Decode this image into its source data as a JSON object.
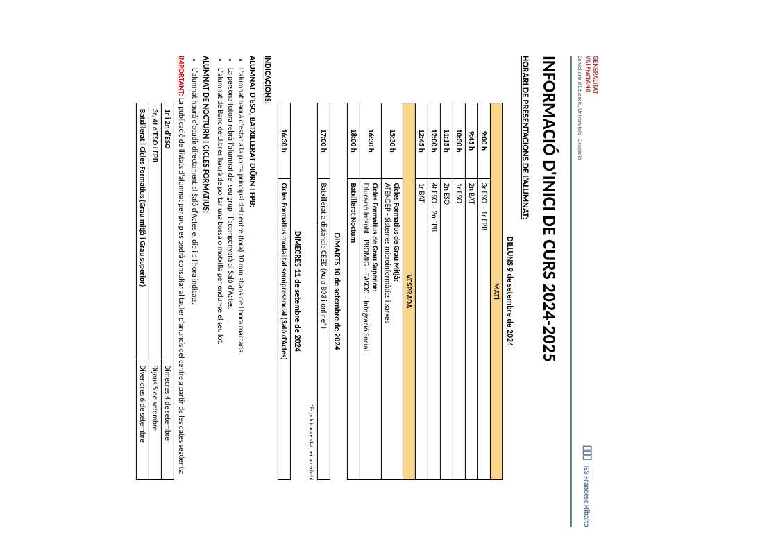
{
  "header": {
    "left_line1": "GENERALITAT",
    "left_line2": "VALENCIANA",
    "left_sub": "Conselleria d'Educació, Universitats i Ocupació",
    "right": "IES Francesc Ribalta"
  },
  "title": "INFORMACIÓ D'INICI DE CURS 2024-2025",
  "subtitle": "HORARI DE PRESENTACIONS DE L'ALUMNAT:",
  "day1": {
    "date": "DILLUNS 9 de setembre de 2024",
    "mati_label": "MATÍ",
    "vesprada_label": "VESPRADA",
    "mati": [
      {
        "time": "9:00 h",
        "label": "3r ESO – 1r FPB"
      },
      {
        "time": "9:45 h",
        "label": "2n BAT"
      },
      {
        "time": "10:30 h",
        "label": "1r ESO"
      },
      {
        "time": "11:15 h",
        "label": "2n ESO"
      },
      {
        "time": "12:00 h",
        "label": "4t ESO – 2n FPB"
      },
      {
        "time": "12:45 h",
        "label": "1r BAT"
      }
    ],
    "vesprada": [
      {
        "time": "15:30 h",
        "l1": "Cicles Formatius de Grau Mitjà:",
        "l2": "ATENDEP - Sistemes microinformàtics i xarxes"
      },
      {
        "time": "16:30 h",
        "l1": "Cicles Formatius de Grau Superior:",
        "l2": "Educació Infantil - PROMIG – TASOC – Integració Social"
      },
      {
        "time": "18:00 h",
        "l1": "Batxillerat Nocturn",
        "l2": ""
      }
    ]
  },
  "day2": {
    "date": "DIMARTS 10 de setembre de 2024",
    "row": {
      "time": "17:00 h",
      "label": "Batxillerat a distància CEED (Aula B03 i online*)"
    },
    "note": "*Es publicarà enllaç per accedir-hi"
  },
  "day3": {
    "date": "DIMECRES 11 de setembre de 2024",
    "row": {
      "time": "16:30 h",
      "label": "Cicles Formatius modalitat semipresencial (Saló d'Actes)"
    }
  },
  "indications": {
    "heading": "INDICACIONS:",
    "group1_h": "ALUMNAT D'ESO, BATXILLERAT DIÜRN I FPB:",
    "group1": [
      "L'alumnat haurà d'estar a la porta principal del centre (fora) 10 min abans de l'hora marcada.",
      "La persona tutora rebrà l'alumnat del seu grup i l'acompanyarà al Saló d'Actes.",
      "L'alumnat de Banc de Llibres haurà de portar una bossa o motxilla per endur-se el seu lot."
    ],
    "group2_h": "ALUMNAT DE NOCTURN I CICLES FORMATIUS:",
    "group2": [
      "L'alumnat haurà d'acudir directament al Saló d'Actes el dia i a l'hora indicats."
    ]
  },
  "important": {
    "kw": "IMPORTANT:",
    "text": "La publicació de llistats d'alumnat per grup es podrà consultar al tauler d'anuncis del centre a partir de les dates següents:"
  },
  "pub_table": [
    {
      "l": "1r i 2n d'ESO",
      "r": "Dimecres 4 de setembre"
    },
    {
      "l": "3r, 4t d'ESO i FPB",
      "r": "Dijous 5 de setembre"
    },
    {
      "l": "Batxillerat i Cicles Formatius (Grau mitjà i Grau superior)",
      "r": "Divendres 6 de setembre"
    }
  ],
  "colors": {
    "header_bg": "#f8d58a",
    "border": "#000000",
    "accent": "#5a7a9a",
    "brand": "#a33333",
    "important": "#c00000"
  }
}
